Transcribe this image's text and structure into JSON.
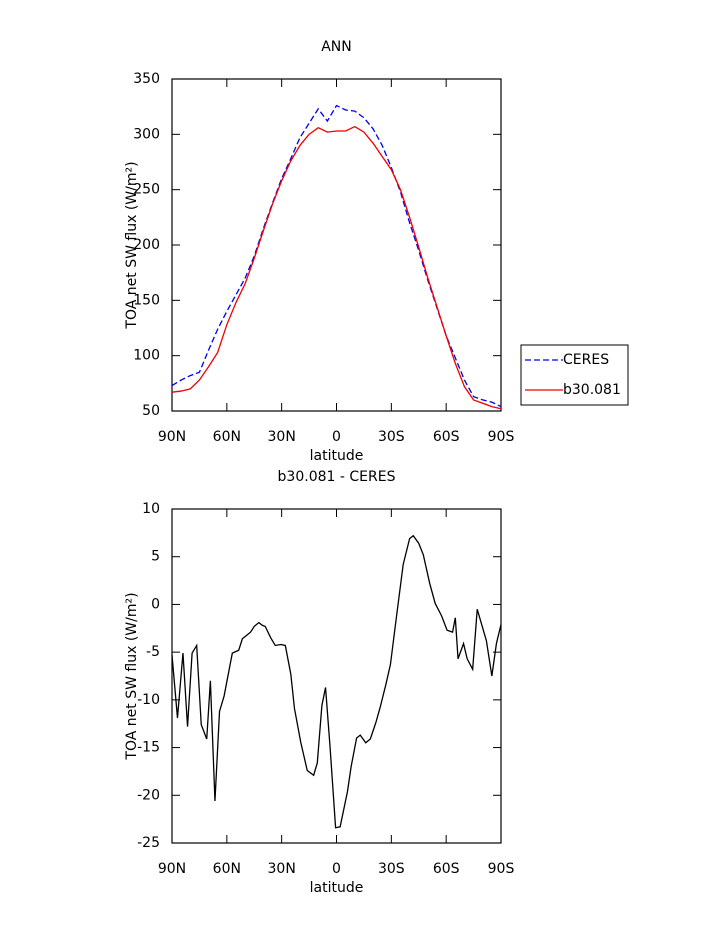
{
  "chart_data": [
    {
      "type": "line",
      "title": "ANN",
      "xlabel": "latitude",
      "ylabel": "TOA net SW flux (W/m²)",
      "x": [
        90,
        85,
        80,
        75,
        70,
        65,
        60,
        55,
        50,
        45,
        40,
        35,
        30,
        25,
        20,
        15,
        10,
        5,
        0,
        -5,
        -10,
        -15,
        -20,
        -25,
        -30,
        -35,
        -40,
        -45,
        -50,
        -55,
        -60,
        -65,
        -70,
        -75,
        -80,
        -85,
        -90
      ],
      "series": [
        {
          "name": "CERES",
          "color": "#0000ee",
          "dashed": true,
          "values": [
            73,
            78,
            82,
            85,
            105,
            124,
            140,
            155,
            170,
            190,
            215,
            238,
            260,
            278,
            297,
            310,
            323,
            312,
            326,
            322,
            321,
            315,
            305,
            290,
            270,
            248,
            220,
            195,
            168,
            143,
            118,
            98,
            78,
            63,
            60,
            58,
            54
          ]
        },
        {
          "name": "b30.081",
          "color": "#ee0000",
          "dashed": false,
          "values": [
            67,
            68,
            70,
            78,
            90,
            103,
            128,
            148,
            165,
            188,
            213,
            237,
            258,
            276,
            290,
            300,
            306,
            302,
            303,
            303,
            307,
            302,
            292,
            280,
            268,
            250,
            225,
            198,
            170,
            144,
            118,
            93,
            72,
            60,
            57,
            54,
            52
          ]
        }
      ],
      "xlim": [
        90,
        -90
      ],
      "xticks": [
        {
          "value": 90,
          "label": "90N"
        },
        {
          "value": 60,
          "label": "60N"
        },
        {
          "value": 30,
          "label": "30N"
        },
        0,
        {
          "value": -30,
          "label": "30S"
        },
        {
          "value": -60,
          "label": "60S"
        },
        {
          "value": -90,
          "label": "90S"
        }
      ],
      "ylim": [
        50,
        350
      ],
      "yticks": [
        50,
        100,
        150,
        200,
        250,
        300,
        350
      ],
      "legend": "right"
    },
    {
      "type": "line",
      "title": "b30.081 - CERES",
      "xlabel": "latitude",
      "ylabel": "TOA net SW flux (W/m²)",
      "x": [
        90,
        87,
        84,
        81.5,
        79,
        76.5,
        74,
        71,
        69,
        66.5,
        64,
        61.5,
        57,
        53.5,
        51.5,
        47,
        45,
        42.5,
        40.5,
        39,
        36,
        33.5,
        30.5,
        28,
        25,
        23,
        19.5,
        16,
        12.5,
        10.5,
        8,
        6,
        3.5,
        0.5,
        -2,
        -6,
        -8,
        -11,
        -13,
        -16,
        -18.5,
        -21.5,
        -24,
        -27,
        -29.5,
        -33,
        -36.5,
        -40,
        -42,
        -45,
        -47.5,
        -51,
        -54,
        -57.5,
        -60.5,
        -63.5,
        -65,
        -66.5,
        -69.5,
        -71.5,
        -74.5,
        -77,
        -82,
        -85,
        -87.5,
        -90
      ],
      "series": [
        {
          "color": "#000000",
          "dashed": false,
          "values": [
            -5.3,
            -11.9,
            -5.1,
            -12.8,
            -5.1,
            -4.3,
            -12.6,
            -14.1,
            -8,
            -20.6,
            -11.2,
            -9.6,
            -5.1,
            -4.8,
            -3.6,
            -2.9,
            -2.3,
            -1.9,
            -2.2,
            -2.3,
            -3.5,
            -4.3,
            -4.2,
            -4.3,
            -7.3,
            -10.9,
            -14.5,
            -17.4,
            -17.9,
            -16.6,
            -10.6,
            -8.7,
            -15,
            -23.4,
            -23.3,
            -19.6,
            -17,
            -14,
            -13.7,
            -14.5,
            -14.1,
            -12.4,
            -10.7,
            -8.4,
            -6.3,
            -1,
            4.2,
            6.9,
            7.2,
            6.4,
            5.2,
            2.2,
            0.1,
            -1.2,
            -2.7,
            -2.9,
            -1.4,
            -5.7,
            -4.1,
            -5.7,
            -6.8,
            -0.5,
            -3.8,
            -7.5,
            -4.1,
            -2.1
          ]
        }
      ],
      "xlim": [
        90,
        -90
      ],
      "xticks": [
        {
          "value": 90,
          "label": "90N"
        },
        {
          "value": 60,
          "label": "60N"
        },
        {
          "value": 30,
          "label": "30N"
        },
        0,
        {
          "value": -30,
          "label": "30S"
        },
        {
          "value": -60,
          "label": "60S"
        },
        {
          "value": -90,
          "label": "90S"
        }
      ],
      "ylim": [
        -25,
        10
      ],
      "yticks": [
        -25,
        -20,
        -15,
        -10,
        -5,
        0,
        5,
        10
      ]
    }
  ]
}
